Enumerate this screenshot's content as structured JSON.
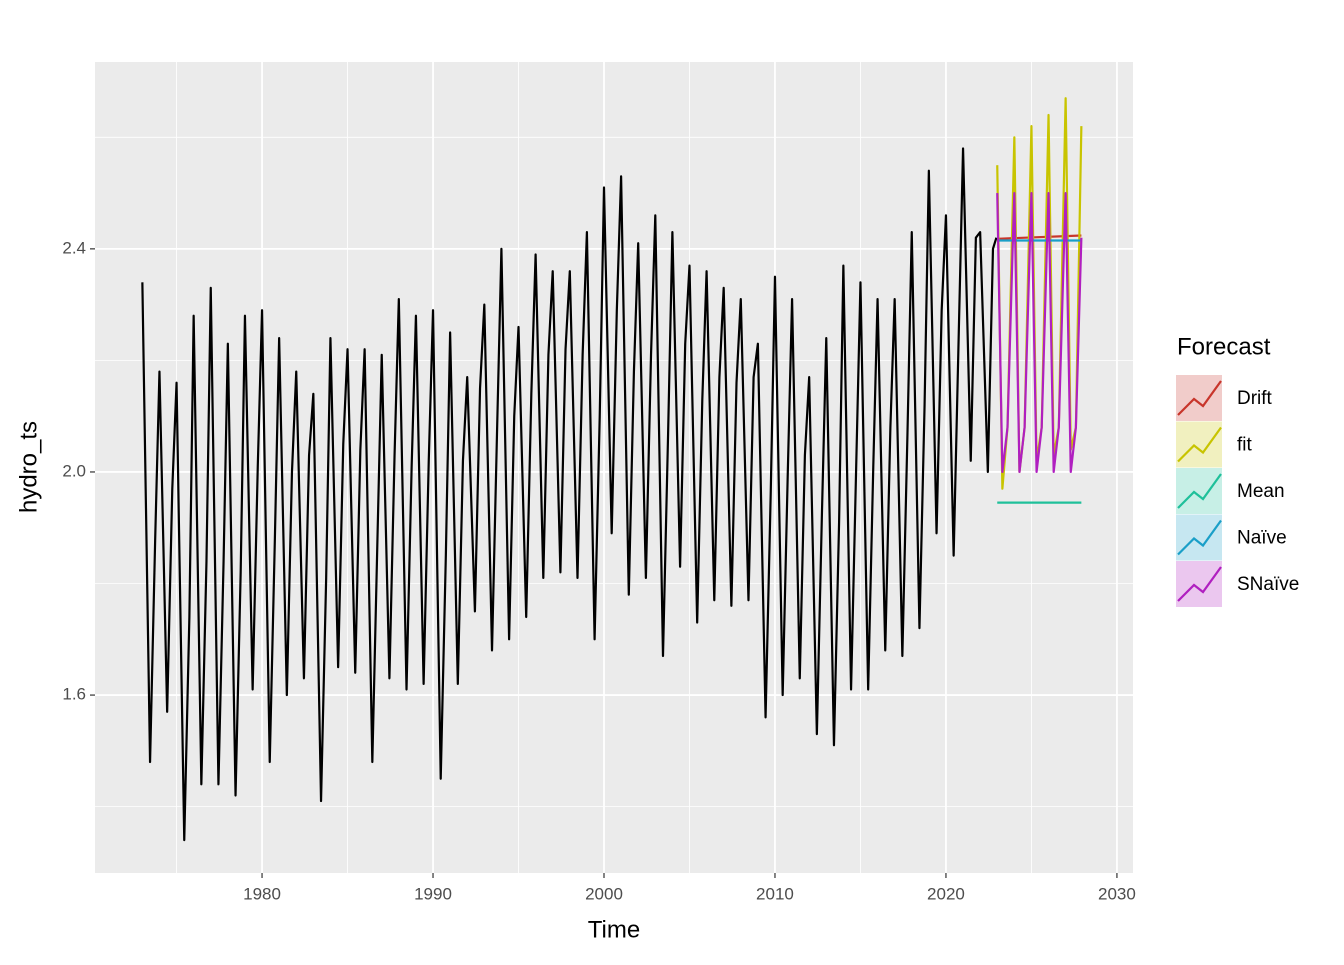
{
  "chart_data": {
    "type": "line",
    "x_label": "Time",
    "y_label": "hydro_ts",
    "legend_title": "Forecast",
    "legend_position": "right",
    "grid": true,
    "xlim": [
      1970.23,
      2030.94
    ],
    "ylim": [
      1.281,
      2.735
    ],
    "xticks": [
      1980,
      1990,
      2000,
      2010,
      2020,
      2030
    ],
    "xminor": [
      1975,
      1985,
      1995,
      2005,
      2015,
      2025
    ],
    "yticks": [
      1.6,
      {
        "value": 2,
        "label": "2.0"
      },
      2.4
    ],
    "yminor": [
      1.4,
      1.8,
      2.2,
      2.6
    ],
    "history": {
      "color": "#000000",
      "x": [
        1973,
        1973.45,
        1973.75,
        1974,
        1974.45,
        1974.75,
        1975,
        1975.45,
        1975.75,
        1976,
        1976.45,
        1976.75,
        1977,
        1977.45,
        1977.75,
        1978,
        1978.45,
        1978.75,
        1979,
        1979.45,
        1979.75,
        1980,
        1980.45,
        1980.75,
        1981,
        1981.45,
        1981.75,
        1982,
        1982.45,
        1982.75,
        1983,
        1983.45,
        1983.75,
        1984,
        1984.45,
        1984.75,
        1985,
        1985.45,
        1985.75,
        1986,
        1986.45,
        1986.75,
        1987,
        1987.45,
        1987.75,
        1988,
        1988.45,
        1988.75,
        1989,
        1989.45,
        1989.75,
        1990,
        1990.45,
        1990.75,
        1991,
        1991.45,
        1991.75,
        1992,
        1992.45,
        1992.75,
        1993,
        1993.45,
        1993.75,
        1994,
        1994.45,
        1994.75,
        1995,
        1995.45,
        1995.75,
        1996,
        1996.45,
        1996.75,
        1997,
        1997.45,
        1997.75,
        1998,
        1998.45,
        1998.75,
        1999,
        1999.45,
        1999.75,
        2000,
        2000.45,
        2000.75,
        2001,
        2001.45,
        2001.75,
        2002,
        2002.45,
        2002.75,
        2003,
        2003.45,
        2003.75,
        2004,
        2004.45,
        2004.75,
        2005,
        2005.45,
        2005.75,
        2006,
        2006.45,
        2006.75,
        2007,
        2007.45,
        2007.75,
        2008,
        2008.45,
        2008.75,
        2009,
        2009.45,
        2009.75,
        2010,
        2010.45,
        2010.75,
        2011,
        2011.45,
        2011.75,
        2012,
        2012.45,
        2012.75,
        2013,
        2013.45,
        2013.75,
        2014,
        2014.45,
        2014.75,
        2015,
        2015.45,
        2015.75,
        2016,
        2016.45,
        2016.75,
        2017,
        2017.45,
        2017.75,
        2018,
        2018.45,
        2018.75,
        2019,
        2019.45,
        2019.75,
        2020,
        2020.45,
        2020.75,
        2021,
        2021.45,
        2021.75,
        2022,
        2022.45,
        2022.75,
        2022.95
      ],
      "values": [
        2.34,
        1.48,
        1.88,
        2.18,
        1.57,
        1.97,
        2.16,
        1.34,
        1.74,
        2.28,
        1.44,
        1.84,
        2.33,
        1.44,
        1.84,
        2.23,
        1.42,
        1.82,
        2.28,
        1.61,
        2.01,
        2.29,
        1.48,
        1.88,
        2.24,
        1.6,
        2.0,
        2.18,
        1.63,
        2.03,
        2.14,
        1.41,
        1.81,
        2.24,
        1.65,
        2.05,
        2.22,
        1.64,
        2.04,
        2.22,
        1.48,
        1.88,
        2.21,
        1.63,
        2.03,
        2.31,
        1.61,
        2.01,
        2.28,
        1.62,
        2.02,
        2.29,
        1.45,
        1.85,
        2.25,
        1.62,
        2.02,
        2.17,
        1.75,
        2.15,
        2.3,
        1.68,
        2.08,
        2.4,
        1.7,
        2.1,
        2.26,
        1.74,
        2.14,
        2.39,
        1.81,
        2.21,
        2.36,
        1.82,
        2.22,
        2.36,
        1.81,
        2.21,
        2.43,
        1.7,
        2.1,
        2.51,
        1.89,
        2.29,
        2.53,
        1.78,
        2.18,
        2.41,
        1.81,
        2.21,
        2.46,
        1.67,
        2.07,
        2.43,
        1.83,
        2.23,
        2.37,
        1.73,
        2.13,
        2.36,
        1.77,
        2.17,
        2.33,
        1.76,
        2.16,
        2.31,
        1.77,
        2.17,
        2.23,
        1.56,
        1.96,
        2.35,
        1.6,
        2.0,
        2.31,
        1.63,
        2.03,
        2.17,
        1.53,
        1.93,
        2.24,
        1.51,
        1.91,
        2.37,
        1.61,
        2.01,
        2.34,
        1.61,
        2.01,
        2.31,
        1.68,
        2.08,
        2.31,
        1.67,
        2.07,
        2.43,
        1.72,
        2.12,
        2.54,
        1.89,
        2.29,
        2.46,
        1.85,
        2.25,
        2.58,
        2.02,
        2.42,
        2.43,
        2.0,
        2.4,
        2.42
      ]
    },
    "series": [
      {
        "name": "Drift",
        "color": "#c8352b",
        "x": [
          2023,
          2027.92
        ],
        "values": [
          2.418,
          2.424
        ]
      },
      {
        "name": "fit",
        "color": "#c8c400",
        "x": [
          2023,
          2023.3,
          2023.6,
          2024,
          2024.3,
          2024.6,
          2025,
          2025.3,
          2025.6,
          2026,
          2026.3,
          2026.6,
          2027,
          2027.3,
          2027.6,
          2027.92
        ],
        "values": [
          2.55,
          1.97,
          2.08,
          2.6,
          2.0,
          2.08,
          2.62,
          2.02,
          2.08,
          2.64,
          2.03,
          2.08,
          2.67,
          2.04,
          2.08,
          2.62
        ]
      },
      {
        "name": "Mean",
        "color": "#1fc09a",
        "x": [
          2023,
          2027.92
        ],
        "values": [
          1.945,
          1.945
        ]
      },
      {
        "name": "Naïve",
        "color": "#1a9fc8",
        "x": [
          2023,
          2027.92
        ],
        "values": [
          2.415,
          2.415
        ]
      },
      {
        "name": "SNaïve",
        "color": "#b01fc0",
        "x": [
          2023,
          2023.3,
          2023.6,
          2023.9,
          2024,
          2024.3,
          2024.6,
          2024.9,
          2025,
          2025.3,
          2025.6,
          2025.9,
          2026,
          2026.3,
          2026.6,
          2026.9,
          2027,
          2027.3,
          2027.6,
          2027.92
        ],
        "values": [
          2.5,
          2.0,
          2.08,
          2.4,
          2.5,
          2.0,
          2.08,
          2.4,
          2.5,
          2.0,
          2.08,
          2.4,
          2.5,
          2.0,
          2.08,
          2.4,
          2.5,
          2.0,
          2.08,
          2.42
        ]
      }
    ]
  }
}
